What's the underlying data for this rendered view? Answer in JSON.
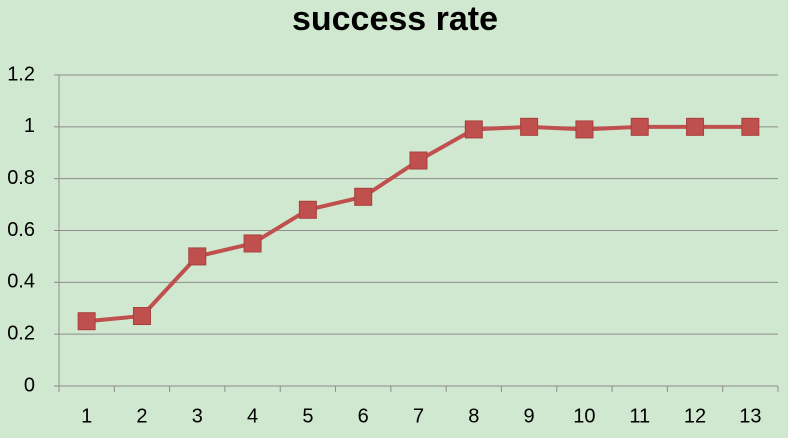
{
  "chart_data": {
    "type": "line",
    "title": "success rate",
    "categories": [
      "1",
      "2",
      "3",
      "4",
      "5",
      "6",
      "7",
      "8",
      "9",
      "10",
      "11",
      "12",
      "13"
    ],
    "values": [
      0.25,
      0.27,
      0.5,
      0.55,
      0.68,
      0.73,
      0.87,
      0.99,
      1.0,
      0.99,
      1.0,
      1.0,
      1.0
    ],
    "color": "#c0504d",
    "ylim": [
      0,
      1.2
    ],
    "yticks": [
      0,
      0.2,
      0.4,
      0.6,
      0.8,
      1,
      1.2
    ],
    "grid": true
  }
}
